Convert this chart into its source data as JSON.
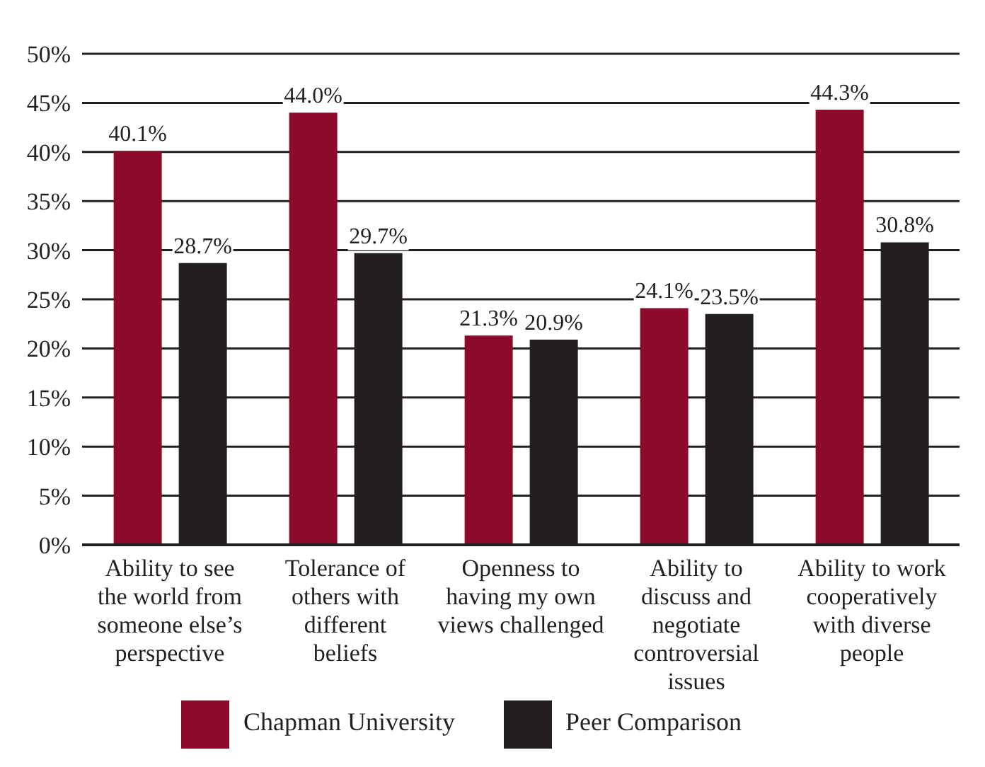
{
  "chart_data": {
    "type": "bar",
    "categories": [
      "Ability to see the world from someone else’s perspective",
      "Tolerance of others with different beliefs",
      "Openness to having my own views challenged",
      "Ability to discuss and negotiate controversial issues",
      "Ability to work cooperatively with diverse people"
    ],
    "series": [
      {
        "name": "Chapman University",
        "color": "#8c0a2c",
        "values": [
          40.1,
          44.0,
          21.3,
          24.1,
          44.3
        ],
        "value_labels": [
          "40.1%",
          "44.0%",
          "21.3%",
          "24.1%",
          "44.3%"
        ]
      },
      {
        "name": "Peer Comparison",
        "color": "#231f20",
        "values": [
          28.7,
          29.7,
          20.9,
          23.5,
          30.8
        ],
        "value_labels": [
          "28.7%",
          "29.7%",
          "20.9%",
          "23.5%",
          "30.8%"
        ]
      }
    ],
    "ylim": [
      0,
      50
    ],
    "yticks": [
      {
        "value": 0,
        "label": "0%"
      },
      {
        "value": 5,
        "label": "5%"
      },
      {
        "value": 10,
        "label": "10%"
      },
      {
        "value": 15,
        "label": "15%"
      },
      {
        "value": 20,
        "label": "20%"
      },
      {
        "value": 25,
        "label": "25%"
      },
      {
        "value": 30,
        "label": "30%"
      },
      {
        "value": 35,
        "label": "35%"
      },
      {
        "value": 40,
        "label": "40%"
      },
      {
        "value": 45,
        "label": "45%"
      },
      {
        "value": 50,
        "label": "50%"
      }
    ],
    "grid": "y",
    "legend": "bottom"
  }
}
